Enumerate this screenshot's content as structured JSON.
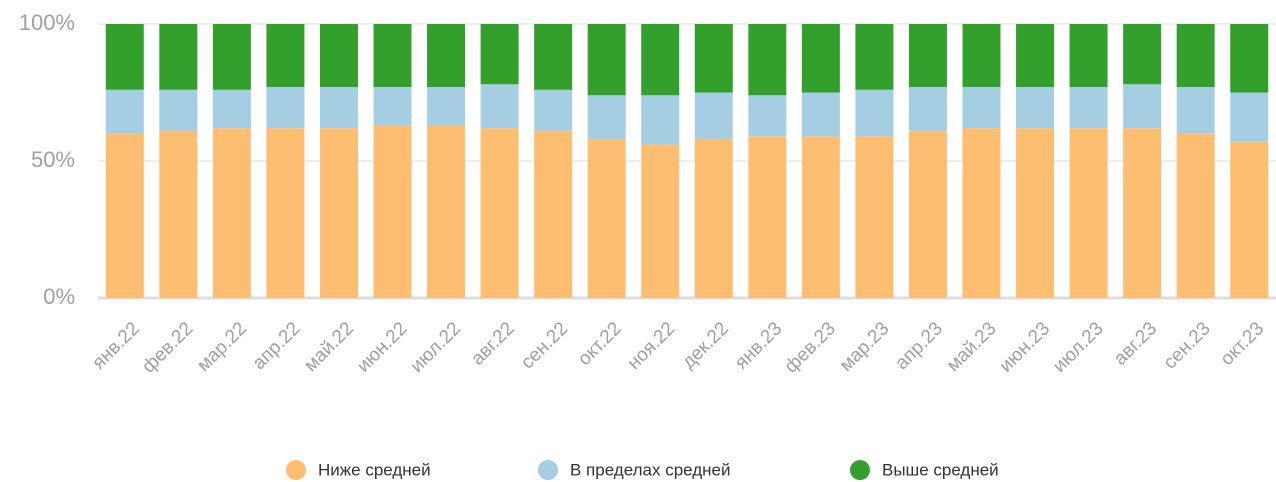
{
  "chart_data": {
    "type": "stacked_bar",
    "categories": [
      "янв.22",
      "фев.22",
      "мар.22",
      "апр.22",
      "май.22",
      "июн.22",
      "июл.22",
      "авг.22",
      "сен.22",
      "окт.22",
      "ноя.22",
      "дек.22",
      "янв.23",
      "фев.23",
      "мар.23",
      "апр.23",
      "май.23",
      "июн.23",
      "июл.23",
      "авг.23",
      "сен.23",
      "окт.23"
    ],
    "series": [
      {
        "name": "Ниже средней",
        "color": "#fdbe72",
        "values": [
          60,
          61,
          62,
          62,
          62,
          63,
          63,
          62,
          61,
          58,
          56,
          58,
          59,
          59,
          59,
          61,
          62,
          62,
          62,
          62,
          60,
          57
        ]
      },
      {
        "name": "В пределах средней",
        "color": "#a6cee3",
        "values": [
          16,
          15,
          14,
          15,
          15,
          14,
          14,
          16,
          15,
          16,
          18,
          17,
          15,
          16,
          17,
          16,
          15,
          15,
          15,
          16,
          17,
          18
        ]
      },
      {
        "name": "Выше средней",
        "color": "#33a02c",
        "values": [
          24,
          24,
          24,
          23,
          23,
          23,
          23,
          22,
          24,
          26,
          26,
          25,
          26,
          25,
          24,
          23,
          23,
          23,
          23,
          22,
          23,
          25
        ]
      }
    ],
    "ylim": [
      0,
      100
    ],
    "yticks": [
      {
        "value": 0,
        "label": "0%"
      },
      {
        "value": 50,
        "label": "50%"
      },
      {
        "value": 100,
        "label": "100%"
      }
    ],
    "grid": true,
    "legend": "bottom"
  }
}
